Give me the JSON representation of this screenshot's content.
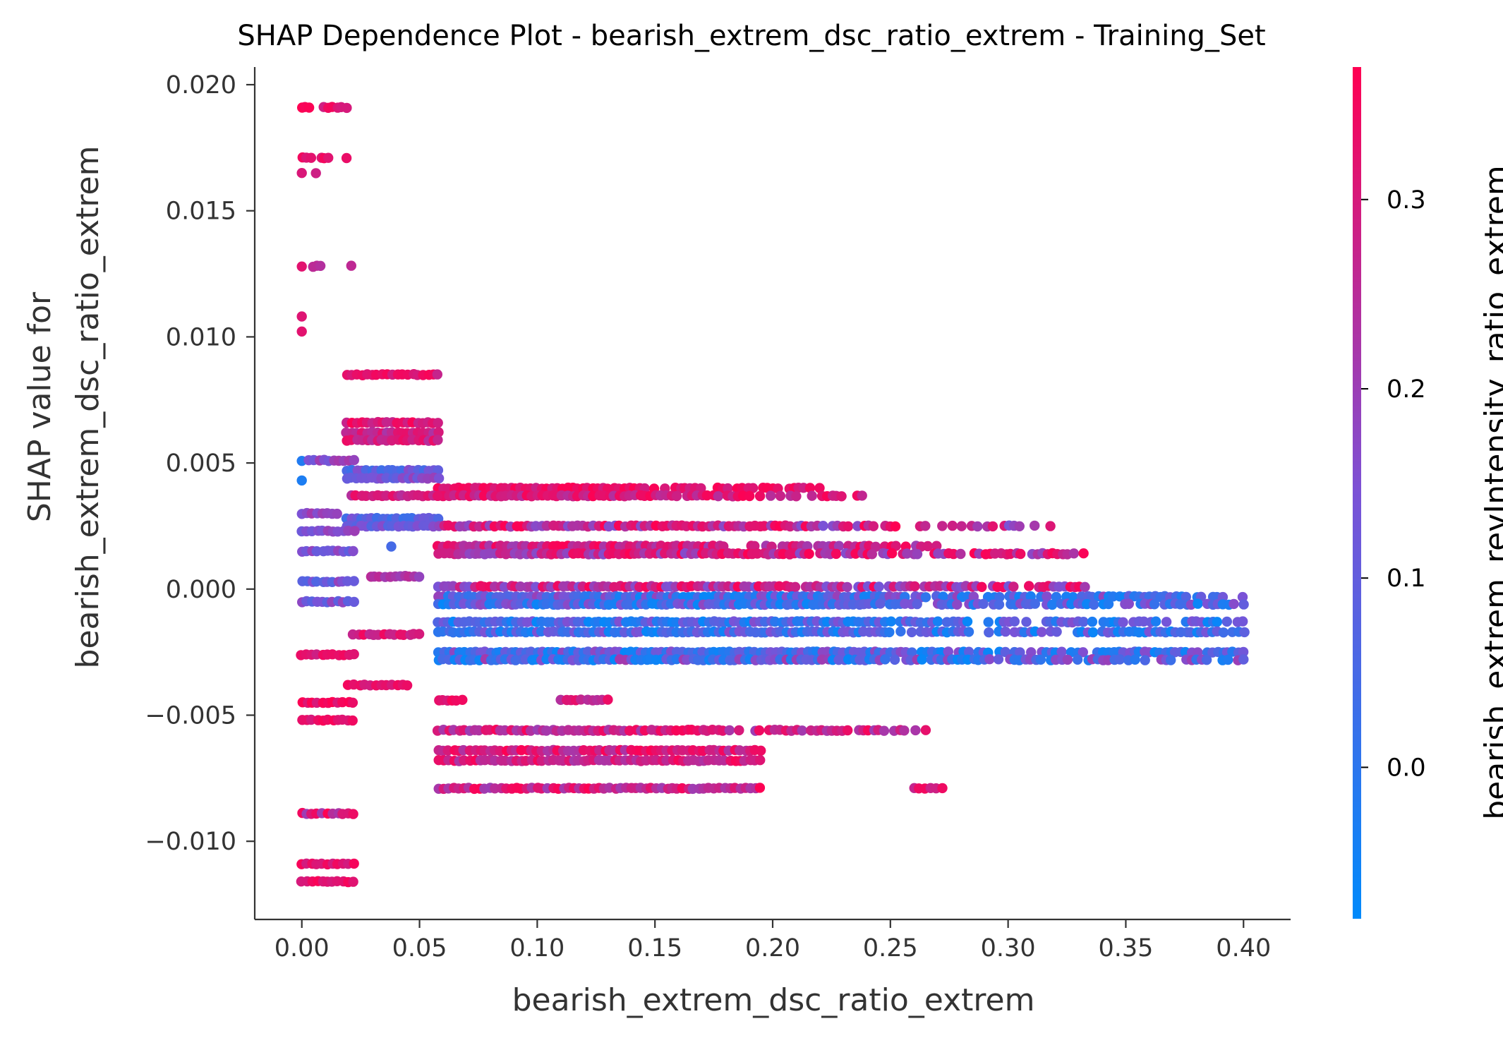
{
  "chart_data": {
    "type": "scatter",
    "title": "SHAP Dependence Plot - bearish_extrem_dsc_ratio_extrem - Training_Set",
    "xlabel": "bearish_extrem_dsc_ratio_extrem",
    "ylabel_lines": [
      "SHAP value for",
      "bearish_extrem_dsc_ratio_extrem"
    ],
    "xlim": [
      -0.02,
      0.42
    ],
    "ylim": [
      -0.0131,
      0.0207
    ],
    "x_ticks": [
      0.0,
      0.05,
      0.1,
      0.15,
      0.2,
      0.25,
      0.3,
      0.35,
      0.4
    ],
    "x_tick_labels": [
      "0.00",
      "0.05",
      "0.10",
      "0.15",
      "0.20",
      "0.25",
      "0.30",
      "0.35",
      "0.40"
    ],
    "y_ticks": [
      0.02,
      0.015,
      0.01,
      0.005,
      0.0,
      -0.005,
      -0.01
    ],
    "y_tick_labels": [
      "0.020",
      "0.015",
      "0.010",
      "0.005",
      "0.000",
      "−0.005",
      "−0.010"
    ],
    "colorbar": {
      "label": "bearish_extrem_revIntensity_ratio_extrem",
      "range": [
        -0.08,
        0.37
      ],
      "ticks": [
        0.0,
        0.1,
        0.2,
        0.3
      ],
      "tick_labels": [
        "0.0",
        "0.1",
        "0.2",
        "0.3"
      ],
      "color_low": "#008afb",
      "color_mid": "#7b52d6",
      "color_high": "#ff0052"
    },
    "grid": false,
    "point_groups": [
      {
        "x": [
          0.0,
          0.003
        ],
        "y": 0.0191,
        "c": [
          0.33,
          0.37
        ]
      },
      {
        "x": [
          0.009,
          0.019
        ],
        "y": 0.0191,
        "c": [
          0.26,
          0.37
        ]
      },
      {
        "x": [
          0.0,
          0.004
        ],
        "y": 0.0171,
        "c": [
          0.3,
          0.36
        ]
      },
      {
        "x": [
          0.008,
          0.011
        ],
        "y": 0.0171,
        "c": [
          0.3,
          0.36
        ]
      },
      {
        "x": [
          0.019,
          0.019
        ],
        "y": 0.0171,
        "c": [
          0.3,
          0.34
        ]
      },
      {
        "x": [
          0.0,
          0.0
        ],
        "y": 0.0165,
        "c": [
          0.3,
          0.35
        ]
      },
      {
        "x": [
          0.006,
          0.006
        ],
        "y": 0.0165,
        "c": [
          0.28,
          0.33
        ]
      },
      {
        "x": [
          0.0,
          0.0
        ],
        "y": 0.0128,
        "c": [
          0.3,
          0.35
        ]
      },
      {
        "x": [
          0.005,
          0.008
        ],
        "y": 0.0128,
        "c": [
          0.22,
          0.3
        ]
      },
      {
        "x": [
          0.021,
          0.021
        ],
        "y": 0.0128,
        "c": [
          0.22,
          0.28
        ]
      },
      {
        "x": [
          0.0,
          0.0
        ],
        "y": 0.0108,
        "c": [
          0.3,
          0.35
        ]
      },
      {
        "x": [
          0.0,
          0.0
        ],
        "y": 0.0102,
        "c": [
          0.3,
          0.35
        ]
      },
      {
        "x": [
          0.019,
          0.058
        ],
        "y": 0.0085,
        "c": [
          0.27,
          0.36
        ]
      },
      {
        "x": [
          0.019,
          0.058
        ],
        "y": 0.0066,
        "c": [
          0.26,
          0.37
        ]
      },
      {
        "x": [
          0.019,
          0.058
        ],
        "y": 0.0062,
        "c": [
          0.22,
          0.33
        ]
      },
      {
        "x": [
          0.019,
          0.058
        ],
        "y": 0.0059,
        "c": [
          0.24,
          0.36
        ]
      },
      {
        "x": [
          0.0,
          0.0
        ],
        "y": 0.0051,
        "c": [
          -0.06,
          0.0
        ]
      },
      {
        "x": [
          0.003,
          0.022
        ],
        "y": 0.0051,
        "c": [
          0.12,
          0.22
        ]
      },
      {
        "x": [
          0.0,
          0.0
        ],
        "y": 0.0043,
        "c": [
          -0.06,
          -0.02
        ]
      },
      {
        "x": [
          0.019,
          0.058
        ],
        "y": 0.0047,
        "c": [
          0.02,
          0.18
        ]
      },
      {
        "x": [
          0.019,
          0.058
        ],
        "y": 0.0044,
        "c": [
          0.06,
          0.2
        ]
      },
      {
        "x": [
          0.058,
          0.22
        ],
        "y": 0.004,
        "c": [
          0.28,
          0.37
        ]
      },
      {
        "x": [
          0.058,
          0.245
        ],
        "y": 0.0037,
        "c": [
          0.24,
          0.37
        ]
      },
      {
        "x": [
          0.021,
          0.058
        ],
        "y": 0.0037,
        "c": [
          0.24,
          0.34
        ]
      },
      {
        "x": [
          0.0,
          0.015
        ],
        "y": 0.003,
        "c": [
          0.14,
          0.22
        ]
      },
      {
        "x": [
          0.019,
          0.058
        ],
        "y": 0.0028,
        "c": [
          0.02,
          0.16
        ]
      },
      {
        "x": [
          0.019,
          0.058
        ],
        "y": 0.0025,
        "c": [
          0.06,
          0.18
        ]
      },
      {
        "x": [
          0.058,
          0.318
        ],
        "y": 0.0025,
        "c": [
          0.14,
          0.37
        ]
      },
      {
        "x": [
          0.0,
          0.022
        ],
        "y": 0.0023,
        "c": [
          0.12,
          0.22
        ]
      },
      {
        "x": [
          0.058,
          0.27
        ],
        "y": 0.0017,
        "c": [
          0.2,
          0.37
        ]
      },
      {
        "x": [
          0.058,
          0.332
        ],
        "y": 0.0014,
        "c": [
          0.16,
          0.37
        ]
      },
      {
        "x": [
          0.0,
          0.022
        ],
        "y": 0.0015,
        "c": [
          0.08,
          0.2
        ]
      },
      {
        "x": [
          0.038,
          0.038
        ],
        "y": 0.0017,
        "c": [
          0.0,
          0.06
        ]
      },
      {
        "x": [
          0.0,
          0.022
        ],
        "y": 0.0003,
        "c": [
          0.06,
          0.2
        ]
      },
      {
        "x": [
          0.029,
          0.05
        ],
        "y": 0.0005,
        "c": [
          0.18,
          0.26
        ]
      },
      {
        "x": [
          0.058,
          0.335
        ],
        "y": 0.0001,
        "c": [
          0.12,
          0.37
        ]
      },
      {
        "x": [
          0.058,
          0.4
        ],
        "y": -0.0003,
        "c": [
          -0.07,
          0.2
        ]
      },
      {
        "x": [
          0.0,
          0.022
        ],
        "y": -0.0005,
        "c": [
          0.06,
          0.2
        ]
      },
      {
        "x": [
          0.058,
          0.4
        ],
        "y": -0.0006,
        "c": [
          -0.07,
          0.18
        ]
      },
      {
        "x": [
          0.058,
          0.4
        ],
        "y": -0.0013,
        "c": [
          -0.07,
          0.16
        ]
      },
      {
        "x": [
          0.058,
          0.4
        ],
        "y": -0.0017,
        "c": [
          -0.07,
          0.16
        ]
      },
      {
        "x": [
          0.022,
          0.05
        ],
        "y": -0.0018,
        "c": [
          0.26,
          0.36
        ]
      },
      {
        "x": [
          0.058,
          0.4
        ],
        "y": -0.0025,
        "c": [
          -0.07,
          0.18
        ]
      },
      {
        "x": [
          0.058,
          0.4
        ],
        "y": -0.0028,
        "c": [
          -0.07,
          0.22
        ]
      },
      {
        "x": [
          0.0,
          0.022
        ],
        "y": -0.0026,
        "c": [
          0.28,
          0.37
        ]
      },
      {
        "x": [
          0.02,
          0.045
        ],
        "y": -0.0038,
        "c": [
          0.28,
          0.37
        ]
      },
      {
        "x": [
          0.058,
          0.068
        ],
        "y": -0.0044,
        "c": [
          0.28,
          0.36
        ]
      },
      {
        "x": [
          0.11,
          0.13
        ],
        "y": -0.0044,
        "c": [
          0.22,
          0.34
        ]
      },
      {
        "x": [
          0.0,
          0.022
        ],
        "y": -0.0045,
        "c": [
          0.3,
          0.37
        ]
      },
      {
        "x": [
          0.0,
          0.022
        ],
        "y": -0.0052,
        "c": [
          0.3,
          0.37
        ]
      },
      {
        "x": [
          0.058,
          0.265
        ],
        "y": -0.0056,
        "c": [
          0.2,
          0.37
        ]
      },
      {
        "x": [
          0.058,
          0.195
        ],
        "y": -0.0064,
        "c": [
          0.22,
          0.37
        ]
      },
      {
        "x": [
          0.058,
          0.195
        ],
        "y": -0.0068,
        "c": [
          0.22,
          0.37
        ]
      },
      {
        "x": [
          0.058,
          0.195
        ],
        "y": -0.0079,
        "c": [
          0.2,
          0.37
        ]
      },
      {
        "x": [
          0.26,
          0.272
        ],
        "y": -0.0079,
        "c": [
          0.26,
          0.36
        ]
      },
      {
        "x": [
          0.0,
          0.022
        ],
        "y": -0.0089,
        "c": [
          0.2,
          0.37
        ]
      },
      {
        "x": [
          0.0,
          0.022
        ],
        "y": -0.0109,
        "c": [
          0.28,
          0.37
        ]
      },
      {
        "x": [
          0.0,
          0.022
        ],
        "y": -0.0116,
        "c": [
          0.28,
          0.37
        ]
      }
    ]
  }
}
